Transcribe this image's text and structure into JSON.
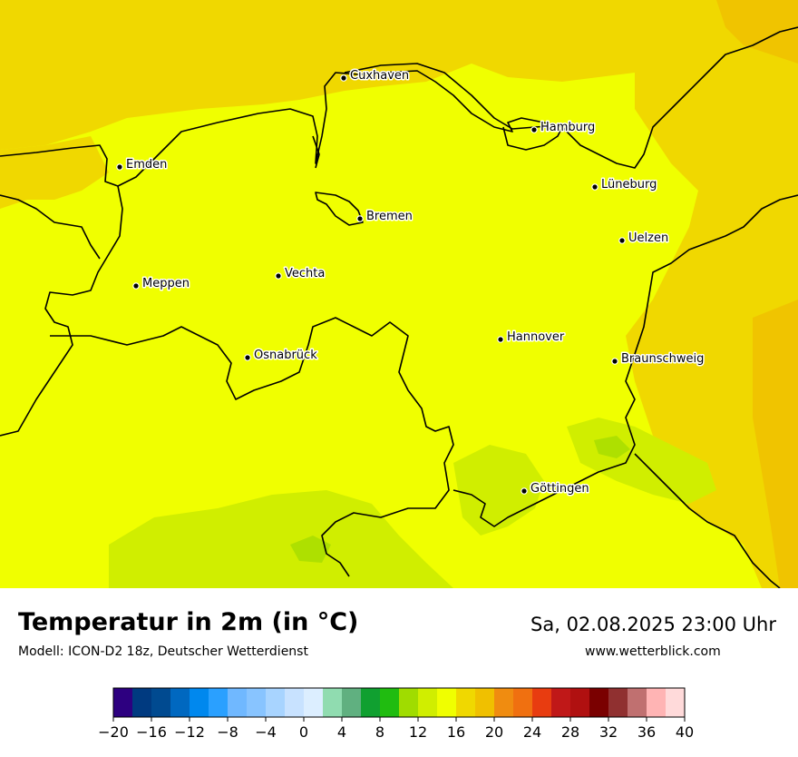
{
  "map": {
    "background_color": "#f0ff00",
    "colors": {
      "warm_orange": "#f0d800",
      "warm_orange_dark": "#f0c400",
      "cool_green": "#d0ee00",
      "cool_green_dark": "#aee000",
      "boundary": "#000000"
    },
    "cities": [
      {
        "name": "Cuxhaven"
      },
      {
        "name": "Hamburg"
      },
      {
        "name": "Emden"
      },
      {
        "name": "Lüneburg"
      },
      {
        "name": "Bremen"
      },
      {
        "name": "Uelzen"
      },
      {
        "name": "Vechta"
      },
      {
        "name": "Meppen"
      },
      {
        "name": "Hannover"
      },
      {
        "name": "Osnabrück"
      },
      {
        "name": "Braunschweig"
      },
      {
        "name": "Göttingen"
      }
    ]
  },
  "header": {
    "title": "Temperatur in 2m (in °C)",
    "subtitle": "Modell: ICON-D2 18z, Deutscher Wetterdienst",
    "datetime": "Sa, 02.08.2025 23:00 Uhr",
    "website": "www.wetterblick.com"
  },
  "legend": {
    "unit": "°C",
    "min": -20,
    "max": 40,
    "step": 2,
    "tick_labels": [
      "−20",
      "−16",
      "−12",
      "−8",
      "−4",
      "0",
      "4",
      "8",
      "12",
      "16",
      "20",
      "24",
      "28",
      "32",
      "36",
      "40"
    ],
    "colors": [
      "#2d0080",
      "#003a80",
      "#004a90",
      "#0068c0",
      "#0088ee",
      "#2aa0ff",
      "#70b8ff",
      "#88c4ff",
      "#a8d4ff",
      "#c8e2ff",
      "#dceeff",
      "#90dcb0",
      "#60b080",
      "#10a030",
      "#20bc10",
      "#a0dc00",
      "#d0ee00",
      "#f0ff00",
      "#f0d800",
      "#f0c000",
      "#f08c10",
      "#f07010",
      "#e83c10",
      "#c01818",
      "#b01010",
      "#7a0000",
      "#903030",
      "#c07070",
      "#ffb4b4",
      "#ffdada"
    ]
  }
}
